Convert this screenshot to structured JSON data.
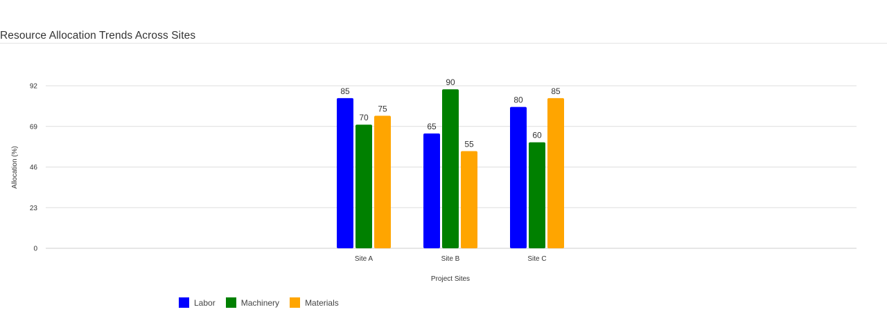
{
  "page": {
    "title": "Resource Allocation Trends Across Sites"
  },
  "chart_data": {
    "type": "bar",
    "title": "Resource Allocation Trends Across Sites",
    "xlabel": "Project Sites",
    "ylabel": "Allocation (%)",
    "categories": [
      "Site A",
      "Site B",
      "Site C"
    ],
    "series": [
      {
        "name": "Labor",
        "values": [
          85,
          65,
          80
        ],
        "color": "#0000ff"
      },
      {
        "name": "Machinery",
        "values": [
          70,
          90,
          60
        ],
        "color": "#008000"
      },
      {
        "name": "Materials",
        "values": [
          75,
          55,
          85
        ],
        "color": "#ffa500"
      }
    ],
    "ylim": [
      0,
      92
    ],
    "yticks": [
      0,
      23,
      46,
      69,
      92
    ],
    "grid": true,
    "legend_position": "bottom-left"
  }
}
